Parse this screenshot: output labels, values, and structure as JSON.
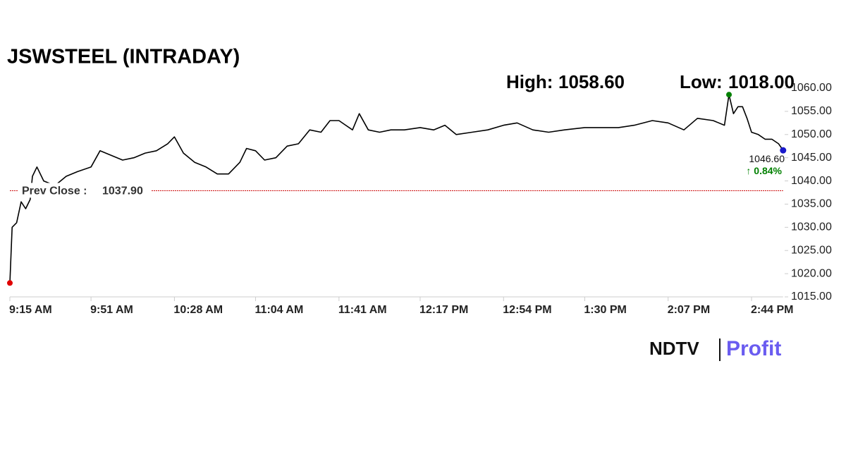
{
  "chart_data": {
    "type": "line",
    "title": "JSWSTEEL (INTRADAY)",
    "color": "#000000",
    "x": [
      "9:15 AM",
      "9:16 AM",
      "9:18 AM",
      "9:20 AM",
      "9:22 AM",
      "9:24 AM",
      "9:25 AM",
      "9:27 AM",
      "9:30 AM",
      "9:35 AM",
      "9:40 AM",
      "9:45 AM",
      "9:51 AM",
      "9:55 AM",
      "10:00 AM",
      "10:05 AM",
      "10:10 AM",
      "10:15 AM",
      "10:20 AM",
      "10:25 AM",
      "10:28 AM",
      "10:32 AM",
      "10:37 AM",
      "10:42 AM",
      "10:47 AM",
      "10:52 AM",
      "10:57 AM",
      "11:00 AM",
      "11:04 AM",
      "11:08 AM",
      "11:13 AM",
      "11:18 AM",
      "11:23 AM",
      "11:28 AM",
      "11:33 AM",
      "11:37 AM",
      "11:41 AM",
      "11:44 AM",
      "11:47 AM",
      "11:50 AM",
      "11:54 AM",
      "11:59 AM",
      "12:04 PM",
      "12:10 PM",
      "12:17 PM",
      "12:23 PM",
      "12:28 PM",
      "12:33 PM",
      "12:40 PM",
      "12:47 PM",
      "12:54 PM",
      "1:00 PM",
      "1:07 PM",
      "1:14 PM",
      "1:21 PM",
      "1:30 PM",
      "1:38 PM",
      "1:45 PM",
      "1:52 PM",
      "2:00 PM",
      "2:07 PM",
      "2:14 PM",
      "2:20 PM",
      "2:27 PM",
      "2:32 PM",
      "2:34 PM",
      "2:36 PM",
      "2:38 PM",
      "2:40 PM",
      "2:42 PM",
      "2:44 PM",
      "2:47 PM",
      "2:50 PM",
      "2:53 PM",
      "2:56 PM",
      "2:58 PM"
    ],
    "values": [
      1018.0,
      1030.0,
      1031.0,
      1035.5,
      1034.0,
      1036.0,
      1041.0,
      1043.0,
      1040.0,
      1039.0,
      1041.0,
      1042.0,
      1043.0,
      1046.5,
      1045.5,
      1044.5,
      1045.0,
      1046.0,
      1046.5,
      1048.0,
      1049.5,
      1046.0,
      1044.0,
      1043.0,
      1041.5,
      1041.5,
      1044.0,
      1047.0,
      1046.5,
      1044.5,
      1045.0,
      1047.5,
      1048.0,
      1051.0,
      1050.5,
      1053.0,
      1053.0,
      1052.0,
      1051.0,
      1054.5,
      1051.0,
      1050.5,
      1051.0,
      1051.0,
      1051.5,
      1051.0,
      1052.0,
      1050.0,
      1050.5,
      1051.0,
      1052.0,
      1052.5,
      1051.0,
      1050.5,
      1051.0,
      1051.5,
      1051.5,
      1051.5,
      1052.0,
      1053.0,
      1052.5,
      1051.0,
      1053.5,
      1053.0,
      1052.0,
      1058.6,
      1054.5,
      1056.0,
      1056.0,
      1053.5,
      1050.5,
      1050.0,
      1049.0,
      1049.0,
      1048.0,
      1046.6
    ],
    "ylim": [
      1015,
      1060
    ],
    "yticks": [
      {
        "value": 1015,
        "label": "1015.00"
      },
      {
        "value": 1020,
        "label": "1020.00"
      },
      {
        "value": 1025,
        "label": "1025.00"
      },
      {
        "value": 1030,
        "label": "1030.00"
      },
      {
        "value": 1035,
        "label": "1035.00"
      },
      {
        "value": 1040,
        "label": "1040.00"
      },
      {
        "value": 1045,
        "label": "1045.00"
      },
      {
        "value": 1050,
        "label": "1050.00"
      },
      {
        "value": 1055,
        "label": "1055.00"
      },
      {
        "value": 1060,
        "label": "1060.00"
      }
    ],
    "xticks": [
      "9:15 AM",
      "9:51 AM",
      "10:28 AM",
      "11:04 AM",
      "11:41 AM",
      "12:17 PM",
      "12:54 PM",
      "1:30 PM",
      "2:07 PM",
      "2:44 PM"
    ],
    "high": {
      "label": "High:",
      "value": 1058.6,
      "value_label": "1058.60",
      "color": "#008000"
    },
    "low": {
      "label": "Low:",
      "value": 1018.0,
      "value_label": "1018.00",
      "color": "#e00000"
    },
    "last": {
      "value": 1046.6,
      "value_label": "1046.60",
      "color": "#1a1acc"
    },
    "change": {
      "value": 0.84,
      "value_label": "↑ 0.84%",
      "color": "#008000"
    },
    "prev_close": {
      "label": "Prev Close :",
      "value": 1037.9,
      "value_label": "1037.90",
      "color": "#cc0000"
    }
  },
  "logo": {
    "brand": "NDTV",
    "product": "Profit"
  }
}
